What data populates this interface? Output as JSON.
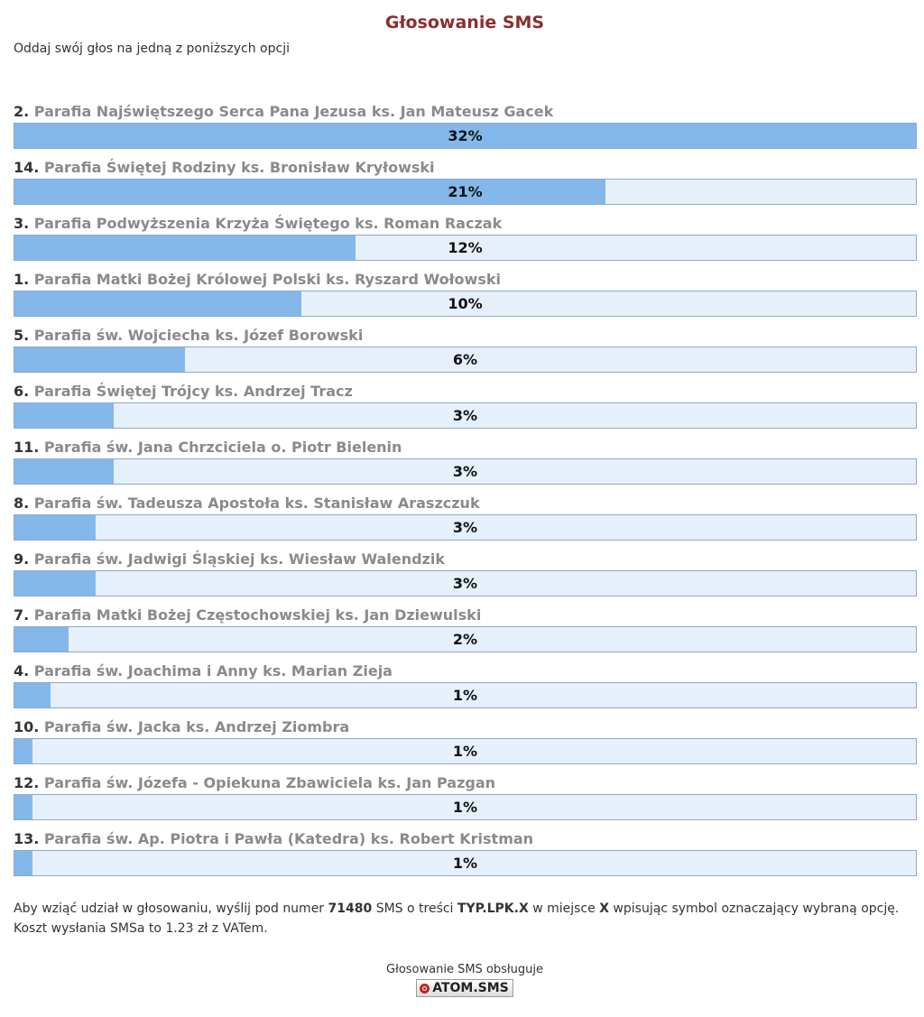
{
  "header": {
    "title": "Głosowanie SMS",
    "subtitle": "Oddaj swój głos na jedną z poniższych opcji"
  },
  "colors": {
    "bar_fill": "#85b8ea",
    "bar_track": "#e6f0fa",
    "title": "#8b2e2e"
  },
  "options": [
    {
      "num": "2.",
      "label": "Parafia Najświętszego Serca Pana Jezusa ks. Jan Mateusz Gacek",
      "pct_label": "32%",
      "fill": 1.0
    },
    {
      "num": "14.",
      "label": "Parafia Świętej Rodziny ks. Bronisław Kryłowski",
      "pct_label": "21%",
      "fill": 0.656
    },
    {
      "num": "3.",
      "label": "Parafia Podwyższenia Krzyża Świętego ks. Roman Raczak",
      "pct_label": "12%",
      "fill": 0.378
    },
    {
      "num": "1.",
      "label": "Parafia Matki Bożej Królowej Polski ks. Ryszard Wołowski",
      "pct_label": "10%",
      "fill": 0.318
    },
    {
      "num": "5.",
      "label": "Parafia św. Wojciecha ks. Józef Borowski",
      "pct_label": "6%",
      "fill": 0.189
    },
    {
      "num": "6.",
      "label": "Parafia Świętej Trójcy ks. Andrzej Tracz",
      "pct_label": "3%",
      "fill": 0.11
    },
    {
      "num": "11.",
      "label": "Parafia św. Jana Chrzciciela o. Piotr Bielenin",
      "pct_label": "3%",
      "fill": 0.11
    },
    {
      "num": "8.",
      "label": "Parafia św. Tadeusza Apostoła ks. Stanisław Araszczuk",
      "pct_label": "3%",
      "fill": 0.09
    },
    {
      "num": "9.",
      "label": "Parafia św. Jadwigi Śląskiej ks. Wiesław Walendzik",
      "pct_label": "3%",
      "fill": 0.09
    },
    {
      "num": "7.",
      "label": "Parafia Matki Bożej Częstochowskiej ks. Jan Dziewulski",
      "pct_label": "2%",
      "fill": 0.06
    },
    {
      "num": "4.",
      "label": "Parafia św. Joachima i Anny ks. Marian Zieja",
      "pct_label": "1%",
      "fill": 0.04
    },
    {
      "num": "10.",
      "label": "Parafia św. Jacka ks. Andrzej Ziombra",
      "pct_label": "1%",
      "fill": 0.02
    },
    {
      "num": "12.",
      "label": "Parafia św. Józefa - Opiekuna Zbawiciela ks. Jan Pazgan",
      "pct_label": "1%",
      "fill": 0.02
    },
    {
      "num": "13.",
      "label": "Parafia św. Ap. Piotra i Pawła (Katedra) ks. Robert Kristman",
      "pct_label": "1%",
      "fill": 0.02
    }
  ],
  "info": {
    "part1": "Aby wziąć udział w głosowaniu, wyślij pod numer ",
    "number": "71480",
    "part2": " SMS o treści ",
    "code": "TYP.LPK.X",
    "part3": " w miejsce ",
    "placeholder": "X",
    "part4": " wpisując symbol oznaczający wybraną opcję. Koszt wysłania SMSa to 1.23 zł z VATem."
  },
  "footer": {
    "text": "Głosowanie SMS obsługuje",
    "logo_text": "ATOM.SMS",
    "logo_icon": "atom-sms-logo-icon"
  }
}
